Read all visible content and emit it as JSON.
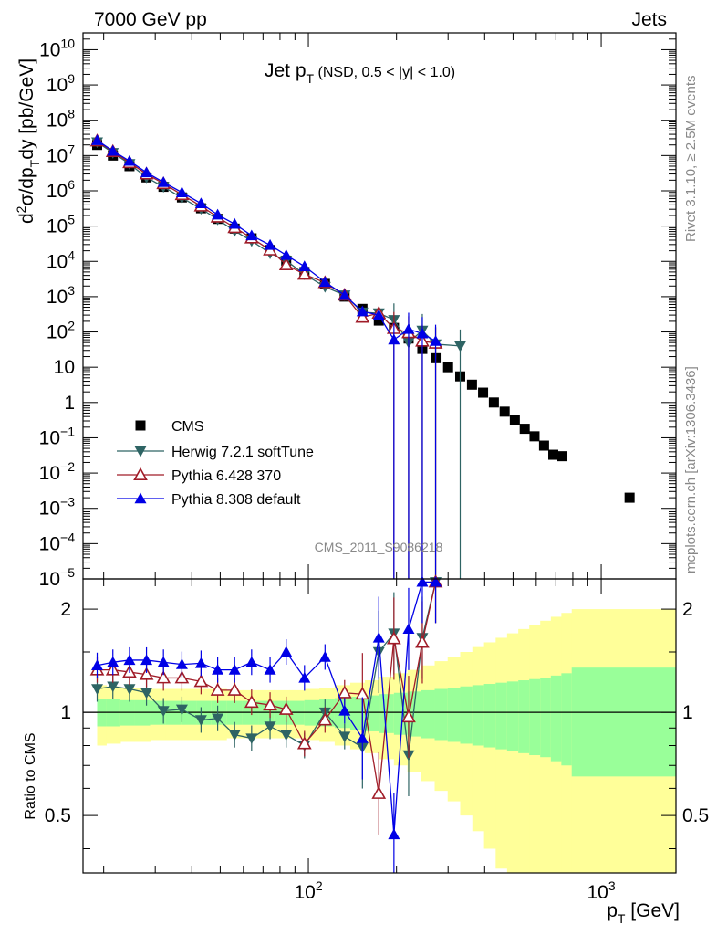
{
  "header": {
    "left": "7000 GeV pp",
    "right": "Jets"
  },
  "side_labels": {
    "upper": "Rivet 3.1.10, ≥ 2.5M events",
    "lower": "mcplots.cern.ch [arXiv:1306.3436]"
  },
  "watermark": "CMS_2011_S9086218",
  "colors": {
    "cms": "#000000",
    "herwig": "#2e6464",
    "pythia6": "#a01c28",
    "pythia8": "#0000e6",
    "band_inner": "#99ff99",
    "band_outer": "#ffff99"
  },
  "chart_data": [
    {
      "type": "scatter",
      "title": "Jet p_T (NSD, 0.5 < |y| < 1.0)",
      "ylabel": "d²σ/dp_T dy [pb/GeV]",
      "xlabel": "p_T [GeV]",
      "x_scale": "log",
      "y_scale": "log",
      "xlim": [
        17,
        1800
      ],
      "ylim": [
        1e-05,
        30000000000.0
      ],
      "y_ticks": [
        {
          "v": 10000000000.0,
          "base": "10",
          "exp": "10"
        },
        {
          "v": 1000000000.0,
          "base": "10",
          "exp": "9"
        },
        {
          "v": 100000000.0,
          "base": "10",
          "exp": "8"
        },
        {
          "v": 10000000.0,
          "base": "10",
          "exp": "7"
        },
        {
          "v": 1000000.0,
          "base": "10",
          "exp": "6"
        },
        {
          "v": 100000.0,
          "base": "10",
          "exp": "5"
        },
        {
          "v": 10000.0,
          "base": "10",
          "exp": "4"
        },
        {
          "v": 1000.0,
          "base": "10",
          "exp": "3"
        },
        {
          "v": 100.0,
          "base": "10",
          "exp": "2"
        },
        {
          "v": 10,
          "base": "10",
          "exp": ""
        },
        {
          "v": 1,
          "base": "1",
          "exp": ""
        },
        {
          "v": 0.1,
          "base": "10",
          "exp": "−1"
        },
        {
          "v": 0.01,
          "base": "10",
          "exp": "−2"
        },
        {
          "v": 0.001,
          "base": "10",
          "exp": "−3"
        },
        {
          "v": 0.0001,
          "base": "10",
          "exp": "−4"
        },
        {
          "v": 1e-05,
          "base": "10",
          "exp": "−5"
        }
      ],
      "series": [
        {
          "name": "CMS",
          "marker": "square",
          "x": [
            19,
            21.5,
            24.5,
            28,
            32,
            37,
            43,
            49,
            56,
            64,
            74,
            84,
            97,
            114,
            133,
            153,
            174,
            196,
            220,
            245,
            272,
            300,
            330,
            362,
            395,
            430,
            468,
            507,
            548,
            592,
            638,
            686,
            737,
            1250
          ],
          "y": [
            20000000.0,
            10000000.0,
            5000000.0,
            2400000.0,
            1300000.0,
            650000.0,
            320000.0,
            160000.0,
            85000.0,
            45000.0,
            21000.0,
            10500.0,
            5000.0,
            2300.0,
            1000.0,
            450,
            210,
            130,
            65,
            33,
            18,
            10,
            5.5,
            3.2,
            1.9,
            1.0,
            0.55,
            0.32,
            0.18,
            0.11,
            0.06,
            0.033,
            0.03,
            0.002
          ]
        },
        {
          "name": "Herwig 7.2.1 softTune",
          "marker": "triangle-down",
          "x": [
            19,
            21.5,
            24.5,
            28,
            32,
            37,
            43,
            49,
            56,
            64,
            74,
            84,
            97,
            114,
            133,
            153,
            174,
            196,
            220,
            245,
            272,
            330
          ],
          "y": [
            24000000.0,
            12000000.0,
            5800000.0,
            2400000.0,
            1300000.0,
            630000.0,
            310000.0,
            155000.0,
            73000.0,
            38000.0,
            17000.0,
            10500.0,
            4300.0,
            1900.0,
            1100.0,
            360,
            340,
            220,
            50,
            110,
            45,
            40
          ]
        },
        {
          "name": "Pythia 6.428 370",
          "marker": "triangle-open",
          "x": [
            19,
            21.5,
            24.5,
            28,
            32,
            37,
            43,
            49,
            56,
            64,
            74,
            84,
            97,
            114,
            133,
            153,
            174,
            196,
            220,
            245,
            272
          ],
          "y": [
            26000000.0,
            13000000.0,
            6300000.0,
            3000000.0,
            1600000.0,
            780000.0,
            370000.0,
            180000.0,
            91000.0,
            46000.0,
            21000.0,
            8000.0,
            4300.0,
            2500.0,
            1100.0,
            260,
            340,
            125,
            95,
            55,
            48
          ]
        },
        {
          "name": "Pythia 8.308 default",
          "marker": "triangle-up",
          "x": [
            19,
            21.5,
            24.5,
            28,
            32,
            37,
            43,
            49,
            56,
            64,
            74,
            84,
            97,
            114,
            133,
            153,
            174,
            196,
            220,
            245,
            272
          ],
          "y": [
            27000000.0,
            13500000.0,
            7000000.0,
            3300000.0,
            1750000.0,
            900000.0,
            440000.0,
            210000.0,
            115000.0,
            54000.0,
            29000.0,
            15000.0,
            7200.0,
            2600.0,
            1100.0,
            380,
            300,
            60,
            120,
            90,
            55
          ]
        }
      ],
      "legend": "lower-left"
    },
    {
      "type": "scatter",
      "ylabel": "Ratio to CMS",
      "x_scale": "log",
      "y_scale": "log",
      "xlim": [
        17,
        1800
      ],
      "ylim": [
        0.34,
        2.45
      ],
      "y_ticks": [
        0.5,
        1,
        2
      ],
      "x_ticks": [
        {
          "v": 100,
          "base": "10",
          "exp": "2"
        },
        {
          "v": 1000,
          "base": "10",
          "exp": "3"
        }
      ],
      "band_edges": [
        19,
        20.4,
        22.8,
        25.5,
        28.8,
        32.5,
        36.8,
        41.5,
        46.5,
        52.5,
        59.6,
        67.6,
        76.3,
        86.1,
        96.9,
        109,
        123,
        139,
        156,
        175,
        196,
        218,
        243,
        270,
        299,
        330,
        363,
        398,
        436,
        477,
        521,
        568,
        619,
        673,
        731,
        793,
        1800
      ],
      "band_inner": [
        0.09,
        0.09,
        0.085,
        0.085,
        0.08,
        0.08,
        0.08,
        0.08,
        0.08,
        0.08,
        0.08,
        0.08,
        0.08,
        0.08,
        0.085,
        0.09,
        0.1,
        0.11,
        0.12,
        0.13,
        0.14,
        0.15,
        0.16,
        0.17,
        0.18,
        0.19,
        0.2,
        0.21,
        0.22,
        0.23,
        0.24,
        0.25,
        0.26,
        0.28,
        0.3,
        0.35
      ],
      "band_outer": [
        0.2,
        0.19,
        0.18,
        0.18,
        0.17,
        0.17,
        0.17,
        0.17,
        0.17,
        0.16,
        0.16,
        0.16,
        0.16,
        0.16,
        0.17,
        0.18,
        0.2,
        0.22,
        0.24,
        0.27,
        0.3,
        0.33,
        0.37,
        0.41,
        0.45,
        0.5,
        0.55,
        0.6,
        0.65,
        0.7,
        0.75,
        0.8,
        0.85,
        0.9,
        0.95,
        1.0
      ],
      "series": [
        {
          "name": "Herwig 7.2.1 softTune",
          "x": [
            19,
            21.5,
            24.5,
            28,
            32,
            37,
            43,
            49,
            56,
            64,
            74,
            84,
            97,
            114,
            133,
            153,
            174,
            196,
            220,
            245,
            272
          ],
          "y": [
            1.17,
            1.19,
            1.17,
            1.14,
            1.01,
            1.02,
            0.95,
            0.96,
            0.86,
            0.84,
            0.91,
            0.86,
            0.8,
            1.0,
            0.85,
            0.79,
            1.5,
            1.7,
            0.75,
            1.65,
            2.4
          ]
        },
        {
          "name": "Pythia 6.428 370",
          "x": [
            19,
            21.5,
            24.5,
            28,
            32,
            37,
            43,
            49,
            56,
            64,
            74,
            84,
            97,
            114,
            133,
            153,
            174,
            196,
            220,
            245,
            272
          ],
          "y": [
            1.33,
            1.33,
            1.31,
            1.29,
            1.26,
            1.26,
            1.23,
            1.16,
            1.16,
            1.07,
            1.05,
            1.02,
            0.81,
            0.95,
            1.14,
            1.13,
            0.58,
            1.64,
            0.97,
            1.6,
            2.4
          ]
        },
        {
          "name": "Pythia 8.308 default",
          "x": [
            19,
            21.5,
            24.5,
            28,
            32,
            37,
            43,
            49,
            56,
            64,
            74,
            84,
            97,
            114,
            133,
            153,
            174,
            196,
            220,
            245,
            272
          ],
          "y": [
            1.37,
            1.4,
            1.42,
            1.42,
            1.4,
            1.38,
            1.39,
            1.33,
            1.33,
            1.4,
            1.33,
            1.5,
            1.26,
            1.45,
            1.01,
            0.84,
            1.65,
            0.44,
            1.75,
            2.4,
            2.4
          ]
        }
      ]
    }
  ]
}
